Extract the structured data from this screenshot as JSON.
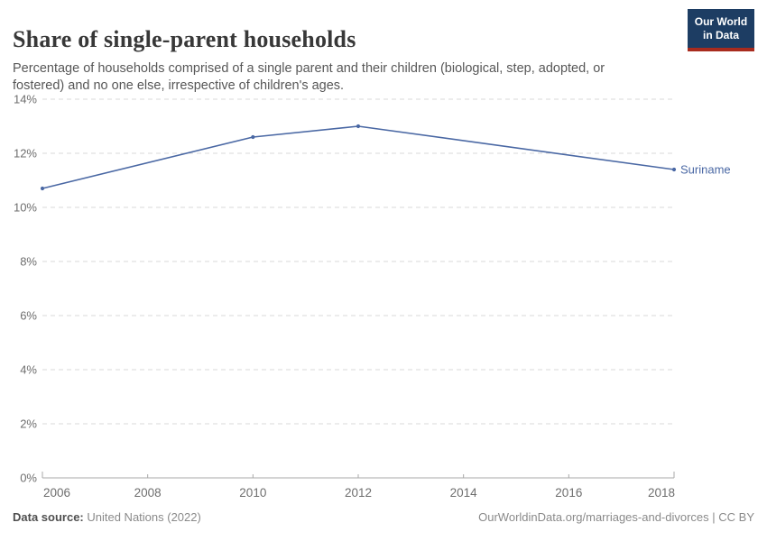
{
  "header": {
    "title": "Share of single-parent households",
    "subtitle": "Percentage of households comprised of a single parent and their children (biological, step, adopted, or fostered) and no one else, irrespective of children's ages.",
    "logo": {
      "line1": "Our World",
      "line2": "in Data"
    }
  },
  "chart_data": {
    "type": "line",
    "series": [
      {
        "name": "Suriname",
        "x": [
          2006,
          2010,
          2012,
          2018
        ],
        "values": [
          10.7,
          12.6,
          13.0,
          11.4
        ],
        "color": "#4a68a4"
      }
    ],
    "x_ticks": [
      2006,
      2008,
      2010,
      2012,
      2014,
      2016,
      2018
    ],
    "y_ticks": [
      {
        "value": 0,
        "label": "0%"
      },
      {
        "value": 2,
        "label": "2%"
      },
      {
        "value": 4,
        "label": "4%"
      },
      {
        "value": 6,
        "label": "6%"
      },
      {
        "value": 8,
        "label": "8%"
      },
      {
        "value": 10,
        "label": "10%"
      },
      {
        "value": 12,
        "label": "12%"
      },
      {
        "value": 14,
        "label": "14%"
      }
    ],
    "xlim": [
      2006,
      2018
    ],
    "ylim": [
      0,
      14
    ],
    "grid": "horizontal-dashed",
    "legend_position": "end-of-line",
    "end_label": "Suriname"
  },
  "footer": {
    "source_label": "Data source:",
    "source_value": " United Nations (2022)",
    "credit": "OurWorldinData.org/marriages-and-divorces | CC BY"
  },
  "colors": {
    "accent_line": "#4a68a4",
    "logo_bg": "#1d3d63",
    "logo_stripe": "#a82b1e",
    "gridline": "#d9d9d9",
    "axis": "#a8a8a8",
    "tick_label": "#6e6e6e"
  }
}
